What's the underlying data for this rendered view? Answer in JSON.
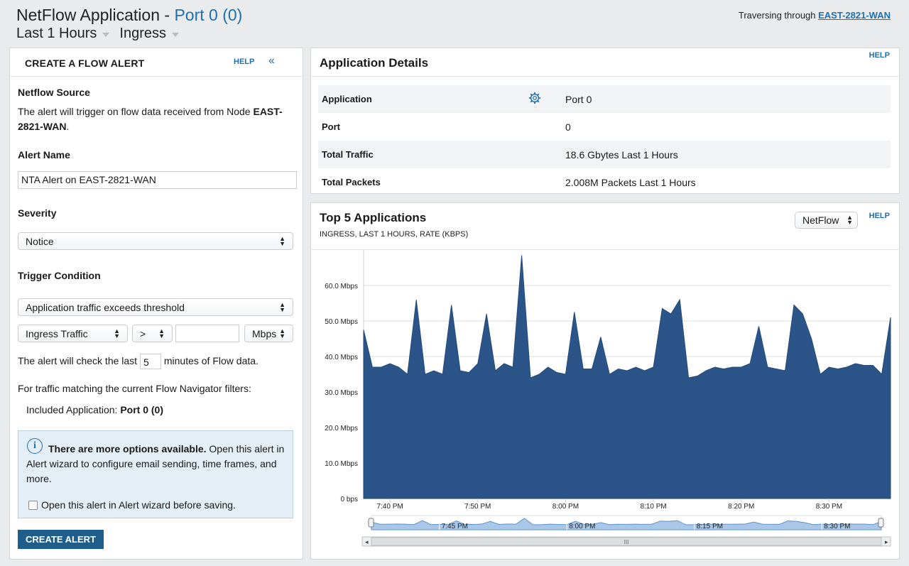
{
  "header": {
    "title": "NetFlow Application - ",
    "title_sub": "Port 0 (0)",
    "time_filter": "Last 1 Hours",
    "direction_filter": "Ingress",
    "traversing_label": "Traversing through ",
    "traversing_node": "EAST-2821-WAN"
  },
  "alert_form": {
    "heading": "CREATE A FLOW ALERT",
    "help": "HELP",
    "collapse_glyph": "«",
    "source_label": "Netflow Source",
    "source_text": "The alert will trigger on flow data received from Node",
    "source_node": "EAST-2821-WAN",
    "source_suffix": ".",
    "name_label": "Alert Name",
    "name_value": "NTA Alert on EAST-2821-WAN",
    "severity_label": "Severity",
    "severity_value": "Notice",
    "trigger_label": "Trigger Condition",
    "trigger_value": "Application traffic exceeds threshold",
    "traffic_value": "Ingress Traffic",
    "operator_value": ">",
    "threshold_value": "",
    "unit_value": "Mbps",
    "check_prefix": "The alert will check the last",
    "check_minutes": "5",
    "check_suffix": "minutes of Flow data.",
    "matching_text": "For traffic matching the current Flow Navigator filters:",
    "included_label": "Included Application: ",
    "included_value": "Port 0 (0)",
    "info_bold": "There are more options available.",
    "info_text": " Open this alert in Alert wizard to configure email sending, time frames, and more.",
    "info_checkbox": "Open this alert in Alert wizard before saving.",
    "create_button": "CREATE ALERT"
  },
  "details": {
    "title": "Application Details",
    "help": "HELP",
    "rows": [
      {
        "key": "Application",
        "value": "Port 0"
      },
      {
        "key": "Port",
        "value": "0"
      },
      {
        "key": "Total Traffic",
        "value": "18.6 Gbytes Last 1 Hours"
      },
      {
        "key": "Total Packets",
        "value": "2.008M Packets  Last 1 Hours"
      }
    ]
  },
  "top5": {
    "title": "Top 5 Applications",
    "subtitle": "INGRESS, LAST 1 HOURS, RATE (KBPS)",
    "source_select": "NetFlow",
    "help": "HELP"
  },
  "chart_data": {
    "type": "area",
    "title": "",
    "xlabel": "",
    "ylabel": "",
    "ylim": [
      0,
      70
    ],
    "y_ticks": [
      "0 bps",
      "10.0 Mbps",
      "20.0 Mbps",
      "30.0 Mbps",
      "40.0 Mbps",
      "50.0 Mbps",
      "60.0 Mbps"
    ],
    "x_ticks": [
      "7:40 PM",
      "7:50 PM",
      "8:00 PM",
      "8:10 PM",
      "8:20 PM",
      "8:30 PM"
    ],
    "navigator_ticks": [
      "7:45 PM",
      "8:00 PM",
      "8:15 PM",
      "8:30 PM"
    ],
    "color": "#2b5589",
    "series": [
      {
        "x": [
          0,
          1,
          2,
          3,
          4,
          5,
          6,
          7,
          8,
          9,
          10,
          11,
          12,
          13,
          14,
          15,
          16,
          17,
          18,
          19,
          20,
          21,
          22,
          23,
          24,
          25,
          26,
          27,
          28,
          29,
          30,
          31,
          32,
          33,
          34,
          35,
          36,
          37,
          38,
          39,
          40,
          41,
          42,
          43,
          44,
          45,
          46,
          47,
          48,
          49,
          50,
          51,
          52,
          53,
          54,
          55,
          56,
          57,
          58,
          59,
          60
        ],
        "values": [
          47.5,
          37,
          37,
          38,
          37,
          35,
          56,
          35,
          36,
          35,
          54.5,
          36,
          35.5,
          38,
          52,
          36,
          38,
          37,
          68.5,
          34,
          35,
          37,
          35.5,
          35,
          52.5,
          36.5,
          36.5,
          45.5,
          35,
          36.5,
          36,
          37,
          36,
          37,
          53.5,
          52,
          56,
          34,
          34.5,
          36,
          37,
          36.5,
          37,
          37,
          38,
          48.5,
          37,
          36.5,
          36,
          54.5,
          52,
          45,
          35,
          37,
          36.5,
          37,
          38,
          37.5,
          37.5,
          35,
          51
        ]
      }
    ]
  }
}
